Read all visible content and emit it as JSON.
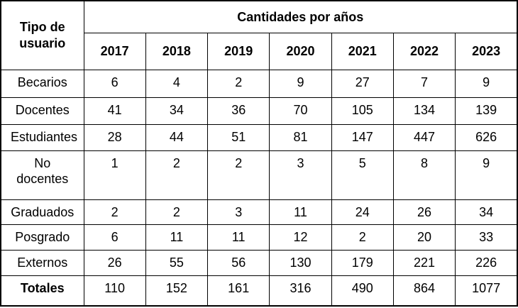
{
  "table": {
    "corner_header": "Tipo de usuario",
    "group_header": "Cantidades por años",
    "colors": {
      "border": "#000000",
      "text": "#000000",
      "background": "#ffffff"
    }
  },
  "chart_data": {
    "type": "table",
    "title": "Cantidades por años",
    "row_header": "Tipo de usuario",
    "categories": [
      "2017",
      "2018",
      "2019",
      "2020",
      "2021",
      "2022",
      "2023"
    ],
    "series": [
      {
        "name": "Becarios",
        "values": [
          6,
          4,
          2,
          9,
          27,
          7,
          9
        ]
      },
      {
        "name": "Docentes",
        "values": [
          41,
          34,
          36,
          70,
          105,
          134,
          139
        ]
      },
      {
        "name": "Estudiantes",
        "values": [
          28,
          44,
          51,
          81,
          147,
          447,
          626
        ]
      },
      {
        "name": "No docentes",
        "values": [
          1,
          2,
          2,
          3,
          5,
          8,
          9
        ]
      },
      {
        "name": "Graduados",
        "values": [
          2,
          2,
          3,
          11,
          24,
          26,
          34
        ]
      },
      {
        "name": "Posgrado",
        "values": [
          6,
          11,
          11,
          12,
          2,
          20,
          33
        ]
      },
      {
        "name": "Externos",
        "values": [
          26,
          55,
          56,
          130,
          179,
          221,
          226
        ]
      },
      {
        "name": "Totales",
        "values": [
          110,
          152,
          161,
          316,
          490,
          864,
          1077
        ]
      }
    ]
  }
}
